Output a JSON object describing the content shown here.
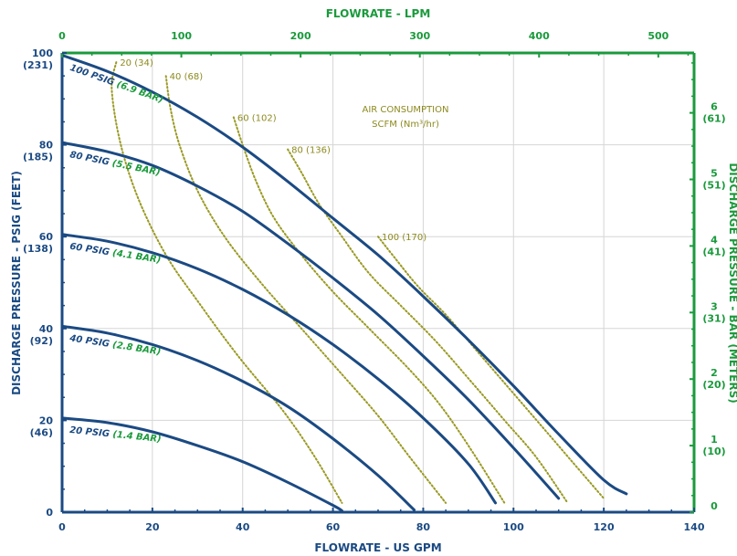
{
  "chart_data": {
    "type": "line",
    "title": "",
    "colors": {
      "curve": "#1b4a83",
      "air_line": "#9a9a24",
      "axis_blue": "#1b4a83",
      "axis_green": "#1a9a3c",
      "grid": "#d6d6d6"
    },
    "x_axis": {
      "label": "FLOWRATE - US GPM",
      "range": [
        0,
        140
      ],
      "ticks": [
        "0",
        "20",
        "40",
        "60",
        "80",
        "100",
        "120",
        "140"
      ]
    },
    "x2_axis": {
      "label": "FLOWRATE - LPM",
      "range": [
        0,
        530
      ],
      "ticks": [
        "0",
        "100",
        "200",
        "300",
        "400",
        "500"
      ]
    },
    "y_axis": {
      "label": "DISCHARGE PRESSURE - PSIG (FEET)",
      "range": [
        0,
        100
      ],
      "ticks": [
        {
          "value": "0",
          "sub": ""
        },
        {
          "value": "20",
          "sub": "(46)"
        },
        {
          "value": "40",
          "sub": "(92)"
        },
        {
          "value": "60",
          "sub": "(138)"
        },
        {
          "value": "80",
          "sub": "(185)"
        },
        {
          "value": "100",
          "sub": "(231)"
        }
      ]
    },
    "y2_axis": {
      "label": "DISCHARGE PRESSURE - BAR (METERS)",
      "range": [
        0,
        6.9
      ],
      "ticks": [
        {
          "value": "0",
          "sub": ""
        },
        {
          "value": "1",
          "sub": "(10)"
        },
        {
          "value": "2",
          "sub": "(20)"
        },
        {
          "value": "3",
          "sub": "(31)"
        },
        {
          "value": "4",
          "sub": "(41)"
        },
        {
          "value": "5",
          "sub": "(51)"
        },
        {
          "value": "6",
          "sub": "(61)"
        }
      ]
    },
    "annotation": {
      "line1": "AIR CONSUMPTION",
      "line2": "SCFM (Nm³/hr)"
    },
    "series": [
      {
        "name": "100 PSIG",
        "name_bar": "(6.9 BAR)",
        "x": [
          0,
          10,
          20,
          30,
          40,
          50,
          60,
          70,
          80,
          90,
          100,
          110,
          120,
          125
        ],
        "y": [
          99.5,
          96,
          91.5,
          86,
          79.5,
          72,
          64,
          56,
          47,
          37.5,
          27.5,
          17,
          7,
          4
        ]
      },
      {
        "name": "80 PSIG",
        "name_bar": "(5.5 BAR)",
        "x": [
          0,
          10,
          20,
          30,
          40,
          50,
          60,
          70,
          80,
          90,
          100,
          110
        ],
        "y": [
          80.5,
          78.5,
          75.5,
          71,
          65.5,
          58.5,
          51,
          43,
          34,
          24.5,
          14,
          3
        ]
      },
      {
        "name": "60 PSIG",
        "name_bar": "(4.1 BAR)",
        "x": [
          0,
          10,
          20,
          30,
          40,
          50,
          60,
          70,
          80,
          90,
          96
        ],
        "y": [
          60.5,
          59,
          56.5,
          53,
          48.5,
          43,
          36.5,
          29,
          20.5,
          10.5,
          2
        ]
      },
      {
        "name": "40 PSIG",
        "name_bar": "(2.8 BAR)",
        "x": [
          0,
          10,
          20,
          30,
          40,
          50,
          60,
          70,
          78
        ],
        "y": [
          40.5,
          39,
          36.5,
          33,
          28.5,
          23,
          16,
          8,
          0.5
        ]
      },
      {
        "name": "20 PSIG",
        "name_bar": "(1.4 BAR)",
        "x": [
          0,
          10,
          20,
          30,
          40,
          50,
          60,
          62
        ],
        "y": [
          20.5,
          19.5,
          17.5,
          14.5,
          11,
          6.5,
          1.5,
          0.3
        ]
      }
    ],
    "air_consumption": [
      {
        "label": "20 (34)",
        "x": [
          12,
          11,
          13,
          17,
          23,
          30,
          39,
          49,
          56,
          62
        ],
        "y": [
          98,
          92,
          80,
          68,
          56,
          46,
          34,
          22,
          12,
          2
        ]
      },
      {
        "label": "40 (68)",
        "x": [
          23,
          24,
          26,
          30,
          36,
          44,
          53,
          62,
          70,
          77,
          85
        ],
        "y": [
          95,
          88,
          80,
          70,
          60,
          50,
          40,
          30,
          21,
          12,
          2
        ]
      },
      {
        "label": "60 (102)",
        "x": [
          38,
          40,
          43,
          47,
          53,
          60,
          68,
          77,
          84,
          91,
          98
        ],
        "y": [
          86,
          80,
          72,
          64,
          56,
          48,
          40,
          31,
          23,
          13,
          2
        ]
      },
      {
        "label": "80 (136)",
        "x": [
          50,
          53,
          57,
          62,
          68,
          75,
          83,
          91,
          98,
          105,
          112
        ],
        "y": [
          79,
          74,
          67,
          60,
          52,
          45,
          37,
          28,
          20,
          12,
          2
        ]
      },
      {
        "label": "100 (170)",
        "x": [
          70,
          74,
          79,
          85,
          92,
          99,
          106,
          113,
          120
        ],
        "y": [
          60,
          55,
          49,
          43,
          35,
          27,
          19,
          11,
          3
        ]
      }
    ]
  }
}
